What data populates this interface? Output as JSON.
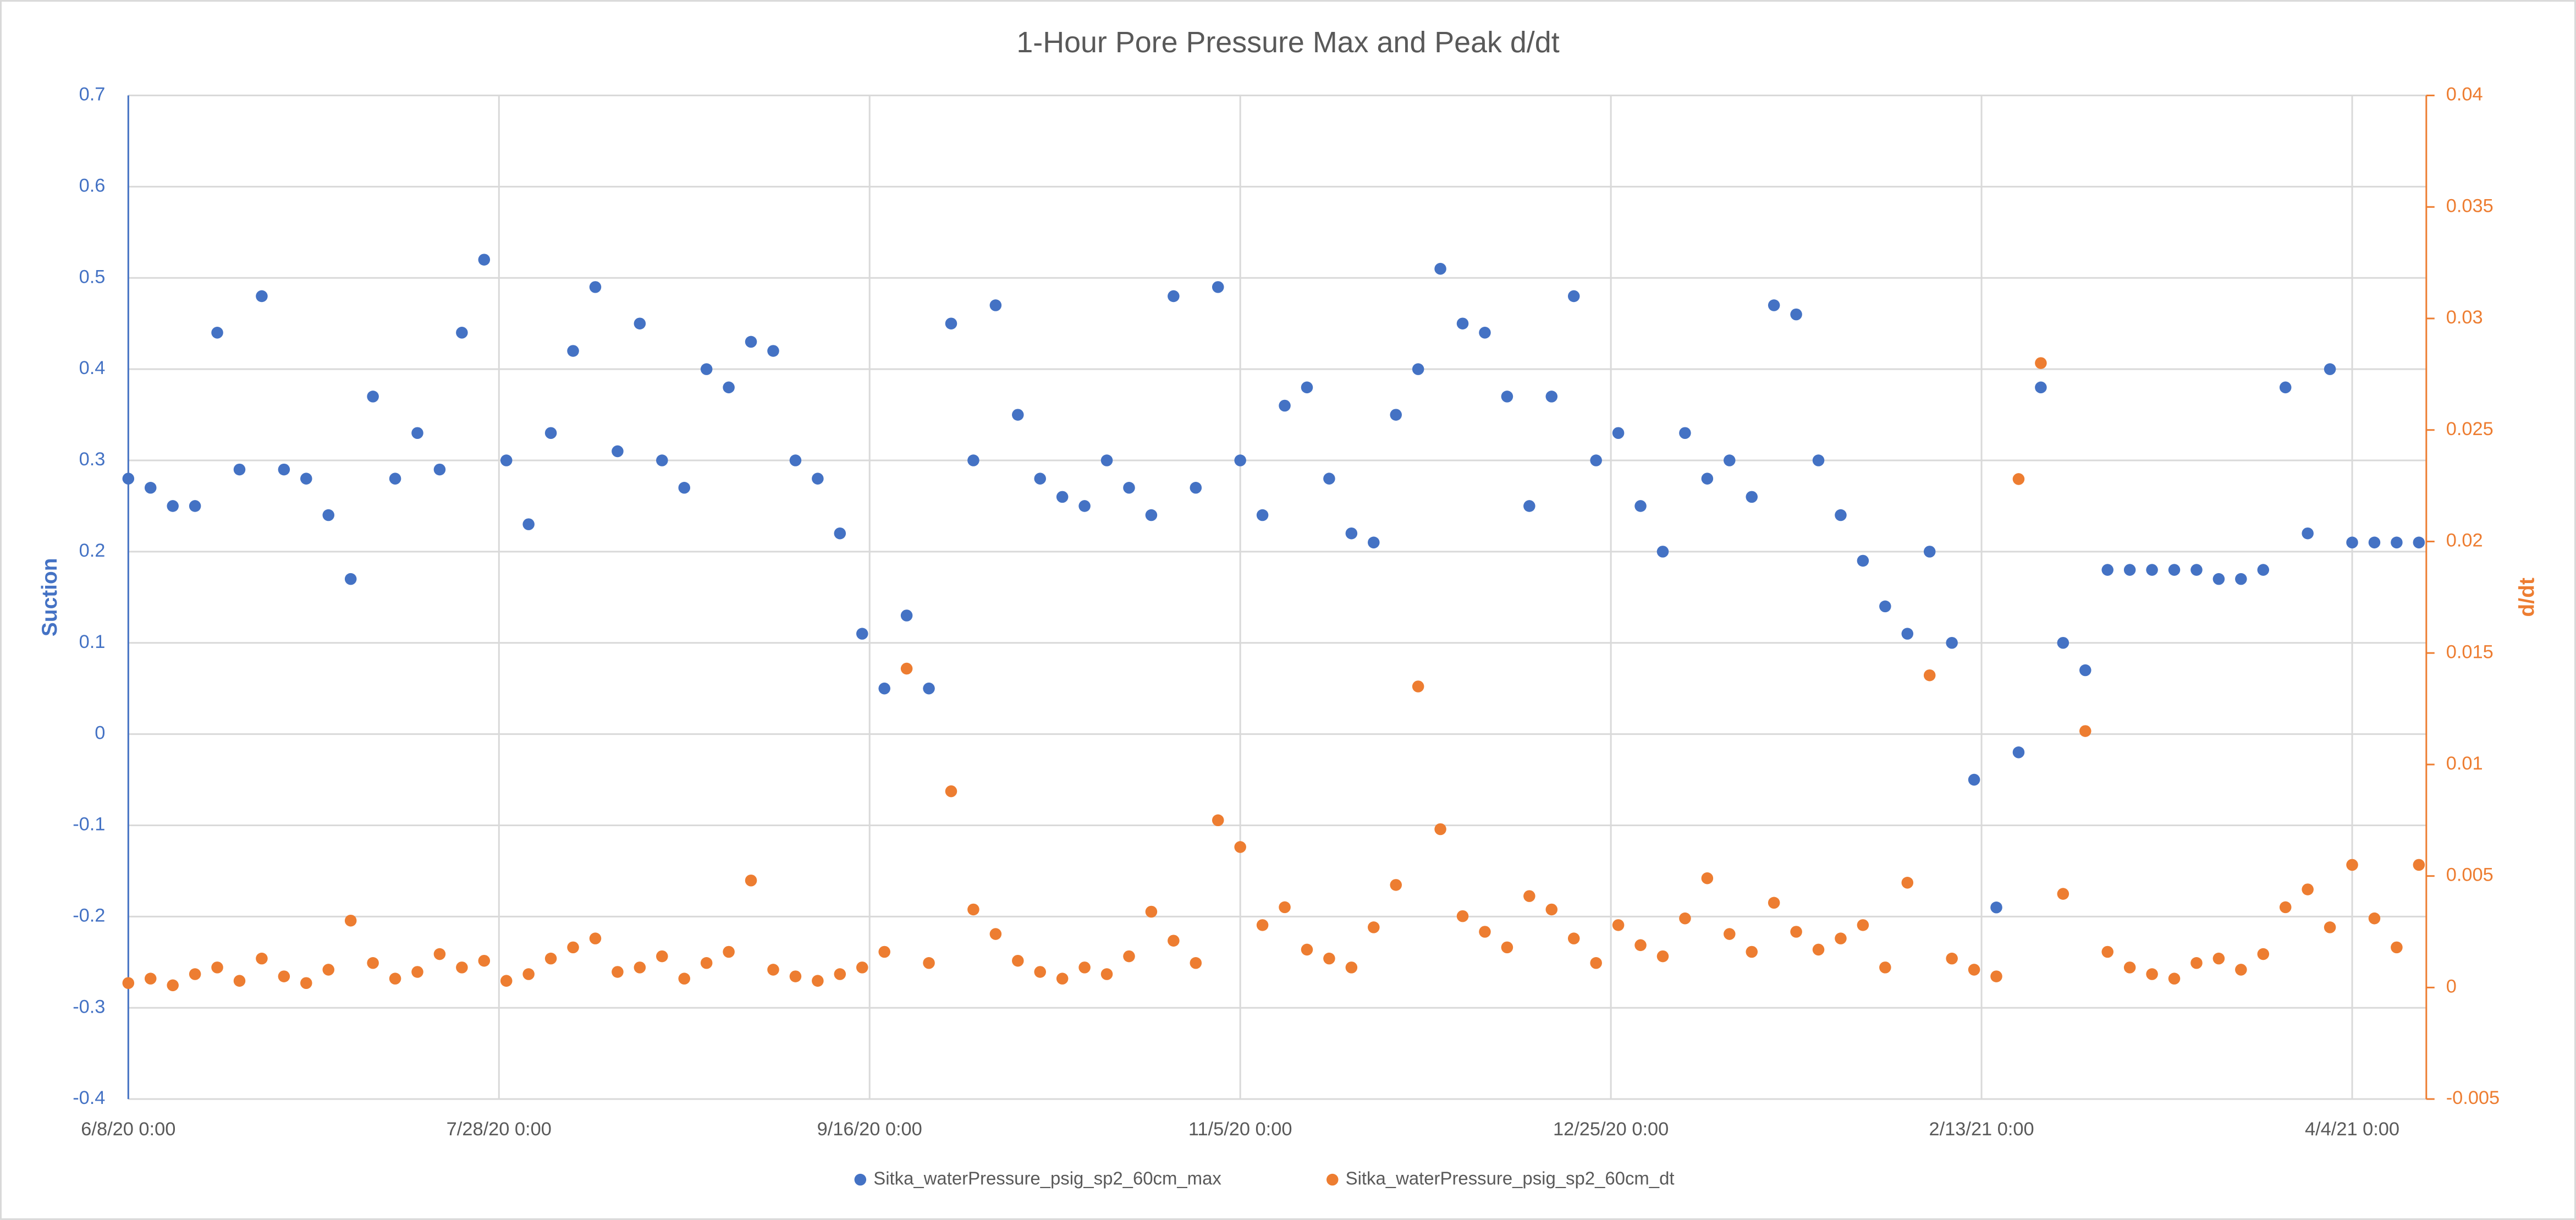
{
  "chart_data": {
    "type": "scatter",
    "title": "1-Hour Pore Pressure Max and Peak d/dt",
    "y_label": "Suction",
    "y2_label": "d/dt",
    "x": [
      "6/8/20 0:00",
      "6/11/20 0:00",
      "6/14/20 0:00",
      "6/17/20 0:00",
      "6/20/20 0:00",
      "6/23/20 0:00",
      "6/26/20 0:00",
      "6/29/20 0:00",
      "7/2/20 0:00",
      "7/5/20 0:00",
      "7/8/20 0:00",
      "7/11/20 0:00",
      "7/14/20 0:00",
      "7/17/20 0:00",
      "7/20/20 0:00",
      "7/23/20 0:00",
      "7/26/20 0:00",
      "7/29/20 0:00",
      "8/1/20 0:00",
      "8/4/20 0:00",
      "8/7/20 0:00",
      "8/10/20 0:00",
      "8/13/20 0:00",
      "8/16/20 0:00",
      "8/19/20 0:00",
      "8/22/20 0:00",
      "8/25/20 0:00",
      "8/28/20 0:00",
      "8/31/20 0:00",
      "9/3/20 0:00",
      "9/6/20 0:00",
      "9/9/20 0:00",
      "9/12/20 0:00",
      "9/15/20 0:00",
      "9/18/20 0:00",
      "9/21/20 0:00",
      "9/24/20 0:00",
      "9/27/20 0:00",
      "9/30/20 0:00",
      "10/3/20 0:00",
      "10/6/20 0:00",
      "10/9/20 0:00",
      "10/12/20 0:00",
      "10/15/20 0:00",
      "10/18/20 0:00",
      "10/21/20 0:00",
      "10/24/20 0:00",
      "10/27/20 0:00",
      "10/30/20 0:00",
      "11/2/20 0:00",
      "11/5/20 0:00",
      "11/8/20 0:00",
      "11/11/20 0:00",
      "11/14/20 0:00",
      "11/17/20 0:00",
      "11/20/20 0:00",
      "11/23/20 0:00",
      "11/26/20 0:00",
      "11/29/20 0:00",
      "12/2/20 0:00",
      "12/5/20 0:00",
      "12/8/20 0:00",
      "12/11/20 0:00",
      "12/14/20 0:00",
      "12/17/20 0:00",
      "12/20/20 0:00",
      "12/23/20 0:00",
      "12/26/20 0:00",
      "12/29/20 0:00",
      "1/1/21 0:00",
      "1/4/21 0:00",
      "1/7/21 0:00",
      "1/10/21 0:00",
      "1/13/21 0:00",
      "1/16/21 0:00",
      "1/19/21 0:00",
      "1/22/21 0:00",
      "1/25/21 0:00",
      "1/28/21 0:00",
      "1/31/21 0:00",
      "2/3/21 0:00",
      "2/6/21 0:00",
      "2/9/21 0:00",
      "2/12/21 0:00",
      "2/15/21 0:00",
      "2/18/21 0:00",
      "2/21/21 0:00",
      "2/24/21 0:00",
      "2/27/21 0:00",
      "3/2/21 0:00",
      "3/5/21 0:00",
      "3/8/21 0:00",
      "3/11/21 0:00",
      "3/14/21 0:00",
      "3/17/21 0:00",
      "3/20/21 0:00",
      "3/23/21 0:00",
      "3/26/21 0:00",
      "3/29/21 0:00",
      "4/1/21 0:00",
      "4/4/21 0:00",
      "4/7/21 0:00",
      "4/10/21 0:00",
      "4/13/21 0:00"
    ],
    "series": [
      {
        "name": "Sitka_waterPressure_psig_sp2_60cm_max",
        "color": "#4472c4",
        "axis": "y",
        "values": [
          0.28,
          0.27,
          0.25,
          0.25,
          0.44,
          0.29,
          0.48,
          0.29,
          0.28,
          0.24,
          0.17,
          0.37,
          0.28,
          0.33,
          0.29,
          0.44,
          0.52,
          0.3,
          0.23,
          0.33,
          0.42,
          0.49,
          0.31,
          0.45,
          0.3,
          0.27,
          0.4,
          0.38,
          0.43,
          0.42,
          0.3,
          0.28,
          0.22,
          0.11,
          0.05,
          0.13,
          0.05,
          0.45,
          0.3,
          0.47,
          0.35,
          0.28,
          0.26,
          0.25,
          0.3,
          0.27,
          0.24,
          0.48,
          0.27,
          0.49,
          0.3,
          0.24,
          0.36,
          0.38,
          0.28,
          0.22,
          0.21,
          0.35,
          0.4,
          0.51,
          0.45,
          0.44,
          0.37,
          0.25,
          0.37,
          0.48,
          0.3,
          0.33,
          0.25,
          0.2,
          0.33,
          0.28,
          0.3,
          0.26,
          0.47,
          0.46,
          0.3,
          0.24,
          0.19,
          0.14,
          0.11,
          0.2,
          0.1,
          -0.05,
          -0.19,
          -0.02,
          0.38,
          0.1,
          0.07,
          0.18,
          0.18,
          0.18,
          0.18,
          0.18,
          0.17,
          0.17,
          0.18,
          0.38,
          0.22,
          0.4,
          0.21,
          0.21,
          0.21,
          0.21
        ]
      },
      {
        "name": "Sitka_waterPressure_psig_sp2_60cm_dt",
        "color": "#ed7d31",
        "axis": "y2",
        "values": [
          0.0002,
          0.0004,
          0.0001,
          0.0006,
          0.0009,
          0.0003,
          0.0013,
          0.0005,
          0.0002,
          0.0008,
          0.003,
          0.0011,
          0.0004,
          0.0007,
          0.0015,
          0.0009,
          0.0012,
          0.0003,
          0.0006,
          0.0013,
          0.0018,
          0.0022,
          0.0007,
          0.0009,
          0.0014,
          0.0004,
          0.0011,
          0.0016,
          0.0048,
          0.0008,
          0.0005,
          0.0003,
          0.0006,
          0.0009,
          0.0016,
          0.0143,
          0.0011,
          0.0088,
          0.0035,
          0.0024,
          0.0012,
          0.0007,
          0.0004,
          0.0009,
          0.0006,
          0.0014,
          0.0034,
          0.0021,
          0.0011,
          0.0075,
          0.0063,
          0.0028,
          0.0036,
          0.0017,
          0.0013,
          0.0009,
          0.0027,
          0.0046,
          0.0135,
          0.0071,
          0.0032,
          0.0025,
          0.0018,
          0.0041,
          0.0035,
          0.0022,
          0.0011,
          0.0028,
          0.0019,
          0.0014,
          0.0031,
          0.0049,
          0.0024,
          0.0016,
          0.0038,
          0.0025,
          0.0017,
          0.0022,
          0.0028,
          0.0009,
          0.0047,
          0.014,
          0.0013,
          0.0008,
          0.0005,
          0.0228,
          0.028,
          0.0042,
          0.0115,
          0.0016,
          0.0009,
          0.0006,
          0.0004,
          0.0011,
          0.0013,
          0.0008,
          0.0015,
          0.0036,
          0.0044,
          0.0027,
          0.0055,
          0.0031,
          0.0018,
          0.0055
        ]
      }
    ],
    "xlim": [
      "6/8/20 0:00",
      "4/14/21 0:00"
    ],
    "xticks": [
      "6/8/20 0:00",
      "7/28/20 0:00",
      "9/16/20 0:00",
      "11/5/20 0:00",
      "12/25/20 0:00",
      "2/13/21 0:00",
      "4/4/21 0:00"
    ],
    "ylim": [
      -0.4,
      0.7
    ],
    "yticks": [
      -0.4,
      -0.3,
      -0.2,
      -0.1,
      0,
      0.1,
      0.2,
      0.3,
      0.4,
      0.5,
      0.6,
      0.7
    ],
    "y2lim": [
      -0.005,
      0.04
    ],
    "y2ticks": [
      -0.005,
      0,
      0.005,
      0.01,
      0.015,
      0.02,
      0.025,
      0.03,
      0.035,
      0.04
    ],
    "grid": true,
    "legend": "bottom"
  }
}
